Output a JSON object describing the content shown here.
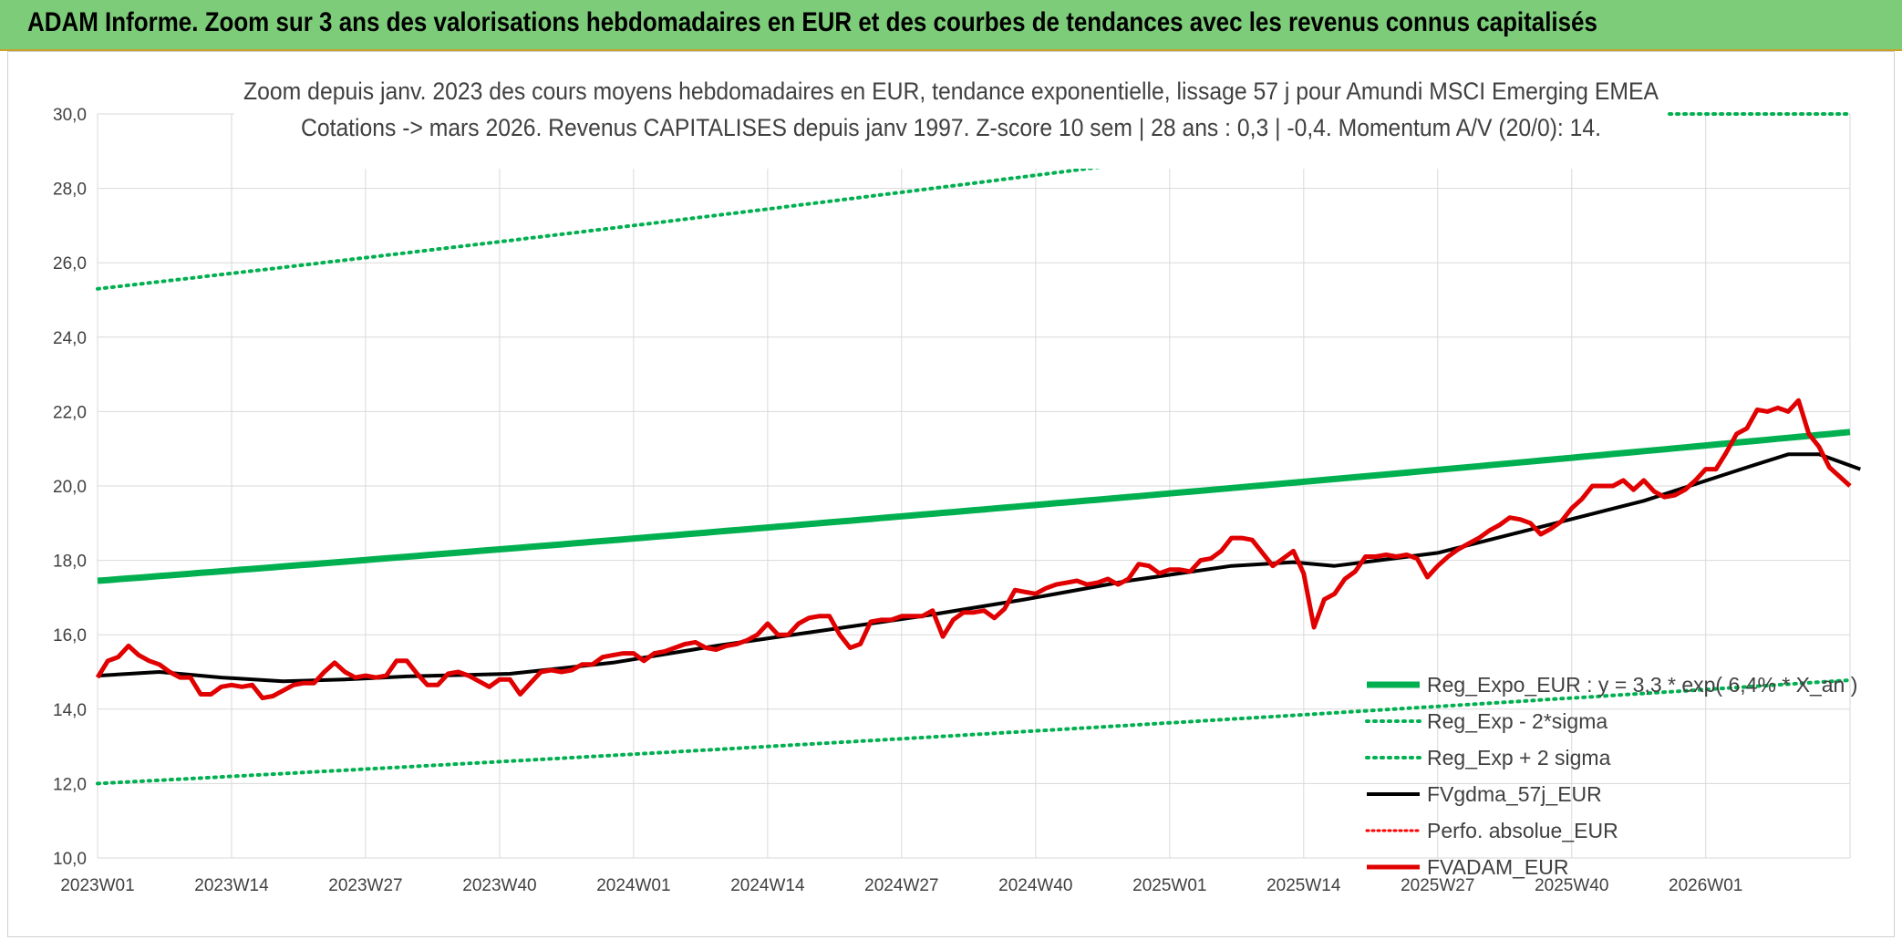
{
  "header": {
    "banner_title": "ADAM Informe. Zoom sur 3 ans des valorisations hebdomadaires en EUR et des courbes de tendances avec les revenus connus capitalisés"
  },
  "chart_data": {
    "type": "line",
    "title_line1": "Zoom depuis janv. 2023 des cours moyens hebdomadaires en EUR, tendance exponentielle, lissage 57 j pour Amundi MSCI Emerging EMEA",
    "title_line2": "Cotations -> mars 2026. Revenus CAPITALISES depuis janv 1997. Z-score 10 sem | 28 ans : 0,3 | -0,4. Momentum A/V (20/0): 14.",
    "ylim": [
      10,
      30
    ],
    "grid": true,
    "legend_position": "right",
    "y_ticks": [
      "10,0",
      "12,0",
      "14,0",
      "16,0",
      "18,0",
      "20,0",
      "22,0",
      "24,0",
      "26,0",
      "28,0",
      "30,0"
    ],
    "x_tick_labels": [
      "2023W01",
      "2023W14",
      "2023W27",
      "2023W40",
      "2024W01",
      "2024W14",
      "2024W27",
      "2024W40",
      "2025W01",
      "2025W14",
      "2025W27",
      "2025W40",
      "2026W01"
    ],
    "x_tick_indices": [
      0,
      13,
      26,
      39,
      52,
      65,
      78,
      91,
      104,
      117,
      130,
      143,
      156
    ],
    "weeks_count": 171,
    "series": [
      {
        "name": "Reg_Expo_EUR : y = 3,3 * exp( 6,4% *  X_an )",
        "color": "#00b050",
        "style": "solid-thick",
        "start": 17.45,
        "end": 21.45
      },
      {
        "name": "Reg_Exp - 2*sigma",
        "color": "#00b050",
        "style": "dotted",
        "start": 12.0,
        "end": 14.78
      },
      {
        "name": "Reg_Exp + 2 sigma",
        "color": "#00b050",
        "style": "dotted",
        "start": 25.3,
        "end": 31.3
      },
      {
        "name": "FVgdma_57j_EUR",
        "color": "#000000",
        "style": "solid",
        "values": [
          [
            0,
            14.9
          ],
          [
            6,
            15.0
          ],
          [
            12,
            14.85
          ],
          [
            18,
            14.75
          ],
          [
            24,
            14.8
          ],
          [
            30,
            14.88
          ],
          [
            40,
            14.95
          ],
          [
            50,
            15.25
          ],
          [
            60,
            15.7
          ],
          [
            70,
            16.1
          ],
          [
            80,
            16.5
          ],
          [
            90,
            16.95
          ],
          [
            100,
            17.45
          ],
          [
            110,
            17.85
          ],
          [
            116,
            17.95
          ],
          [
            120,
            17.85
          ],
          [
            130,
            18.2
          ],
          [
            140,
            18.9
          ],
          [
            150,
            19.6
          ],
          [
            160,
            20.5
          ],
          [
            164,
            20.85
          ],
          [
            167,
            20.85
          ],
          [
            171,
            20.45
          ]
        ]
      },
      {
        "name": "Perfo. absolue_EUR",
        "color": "#ff0000",
        "style": "dotted"
      },
      {
        "name": "FVADAM_EUR",
        "color": "#e00000",
        "style": "solid-thick",
        "values": [
          [
            0,
            14.85
          ],
          [
            1,
            15.3
          ],
          [
            2,
            15.4
          ],
          [
            3,
            15.7
          ],
          [
            4,
            15.45
          ],
          [
            5,
            15.3
          ],
          [
            6,
            15.2
          ],
          [
            7,
            15.0
          ],
          [
            8,
            14.85
          ],
          [
            9,
            14.85
          ],
          [
            10,
            14.4
          ],
          [
            11,
            14.4
          ],
          [
            12,
            14.6
          ],
          [
            13,
            14.65
          ],
          [
            14,
            14.6
          ],
          [
            15,
            14.65
          ],
          [
            16,
            14.3
          ],
          [
            17,
            14.35
          ],
          [
            18,
            14.5
          ],
          [
            19,
            14.65
          ],
          [
            20,
            14.7
          ],
          [
            21,
            14.7
          ],
          [
            22,
            15.0
          ],
          [
            23,
            15.25
          ],
          [
            24,
            15.0
          ],
          [
            25,
            14.85
          ],
          [
            26,
            14.9
          ],
          [
            27,
            14.85
          ],
          [
            28,
            14.9
          ],
          [
            29,
            15.3
          ],
          [
            30,
            15.3
          ],
          [
            31,
            14.95
          ],
          [
            32,
            14.65
          ],
          [
            33,
            14.65
          ],
          [
            34,
            14.95
          ],
          [
            35,
            15.0
          ],
          [
            36,
            14.9
          ],
          [
            37,
            14.75
          ],
          [
            38,
            14.6
          ],
          [
            39,
            14.8
          ],
          [
            40,
            14.8
          ],
          [
            41,
            14.4
          ],
          [
            42,
            14.7
          ],
          [
            43,
            15.0
          ],
          [
            44,
            15.05
          ],
          [
            45,
            15.0
          ],
          [
            46,
            15.05
          ],
          [
            47,
            15.2
          ],
          [
            48,
            15.2
          ],
          [
            49,
            15.4
          ],
          [
            50,
            15.45
          ],
          [
            51,
            15.5
          ],
          [
            52,
            15.5
          ],
          [
            53,
            15.3
          ],
          [
            54,
            15.5
          ],
          [
            55,
            15.55
          ],
          [
            56,
            15.65
          ],
          [
            57,
            15.75
          ],
          [
            58,
            15.8
          ],
          [
            59,
            15.65
          ],
          [
            60,
            15.6
          ],
          [
            61,
            15.7
          ],
          [
            62,
            15.75
          ],
          [
            63,
            15.85
          ],
          [
            64,
            16.0
          ],
          [
            65,
            16.3
          ],
          [
            66,
            16.0
          ],
          [
            67,
            16.0
          ],
          [
            68,
            16.3
          ],
          [
            69,
            16.45
          ],
          [
            70,
            16.5
          ],
          [
            71,
            16.5
          ],
          [
            72,
            16.0
          ],
          [
            73,
            15.65
          ],
          [
            74,
            15.75
          ],
          [
            75,
            16.35
          ],
          [
            76,
            16.4
          ],
          [
            77,
            16.4
          ],
          [
            78,
            16.5
          ],
          [
            79,
            16.5
          ],
          [
            80,
            16.5
          ],
          [
            81,
            16.65
          ],
          [
            82,
            15.95
          ],
          [
            83,
            16.4
          ],
          [
            84,
            16.6
          ],
          [
            85,
            16.6
          ],
          [
            86,
            16.65
          ],
          [
            87,
            16.45
          ],
          [
            88,
            16.7
          ],
          [
            89,
            17.2
          ],
          [
            90,
            17.15
          ],
          [
            91,
            17.1
          ],
          [
            92,
            17.25
          ],
          [
            93,
            17.35
          ],
          [
            94,
            17.4
          ],
          [
            95,
            17.45
          ],
          [
            96,
            17.35
          ],
          [
            97,
            17.4
          ],
          [
            98,
            17.5
          ],
          [
            99,
            17.35
          ],
          [
            100,
            17.5
          ],
          [
            101,
            17.9
          ],
          [
            102,
            17.85
          ],
          [
            103,
            17.65
          ],
          [
            104,
            17.75
          ],
          [
            105,
            17.75
          ],
          [
            106,
            17.7
          ],
          [
            107,
            18.0
          ],
          [
            108,
            18.05
          ],
          [
            109,
            18.25
          ],
          [
            110,
            18.6
          ],
          [
            111,
            18.6
          ],
          [
            112,
            18.55
          ],
          [
            113,
            18.2
          ],
          [
            114,
            17.85
          ],
          [
            115,
            18.05
          ],
          [
            116,
            18.25
          ],
          [
            117,
            17.65
          ],
          [
            118,
            16.2
          ],
          [
            119,
            16.95
          ],
          [
            120,
            17.1
          ],
          [
            121,
            17.5
          ],
          [
            122,
            17.7
          ],
          [
            123,
            18.1
          ],
          [
            124,
            18.1
          ],
          [
            125,
            18.15
          ],
          [
            126,
            18.1
          ],
          [
            127,
            18.15
          ],
          [
            128,
            18.05
          ],
          [
            129,
            17.55
          ],
          [
            130,
            17.85
          ],
          [
            131,
            18.1
          ],
          [
            132,
            18.3
          ],
          [
            133,
            18.45
          ],
          [
            134,
            18.6
          ],
          [
            135,
            18.8
          ],
          [
            136,
            18.95
          ],
          [
            137,
            19.15
          ],
          [
            138,
            19.1
          ],
          [
            139,
            19.0
          ],
          [
            140,
            18.7
          ],
          [
            141,
            18.85
          ],
          [
            142,
            19.05
          ],
          [
            143,
            19.4
          ],
          [
            144,
            19.65
          ],
          [
            145,
            20.0
          ],
          [
            146,
            20.0
          ],
          [
            147,
            20.0
          ],
          [
            148,
            20.15
          ],
          [
            149,
            19.9
          ],
          [
            150,
            20.15
          ],
          [
            151,
            19.85
          ],
          [
            152,
            19.7
          ],
          [
            153,
            19.75
          ],
          [
            154,
            19.9
          ],
          [
            155,
            20.15
          ],
          [
            156,
            20.45
          ],
          [
            157,
            20.45
          ],
          [
            158,
            20.9
          ],
          [
            159,
            21.4
          ],
          [
            160,
            21.55
          ],
          [
            161,
            22.05
          ],
          [
            162,
            22.0
          ],
          [
            163,
            22.1
          ],
          [
            164,
            22.0
          ],
          [
            165,
            22.3
          ],
          [
            166,
            21.4
          ],
          [
            167,
            21.05
          ],
          [
            168,
            20.5
          ],
          [
            169,
            20.25
          ],
          [
            170,
            20.0
          ]
        ]
      }
    ]
  }
}
